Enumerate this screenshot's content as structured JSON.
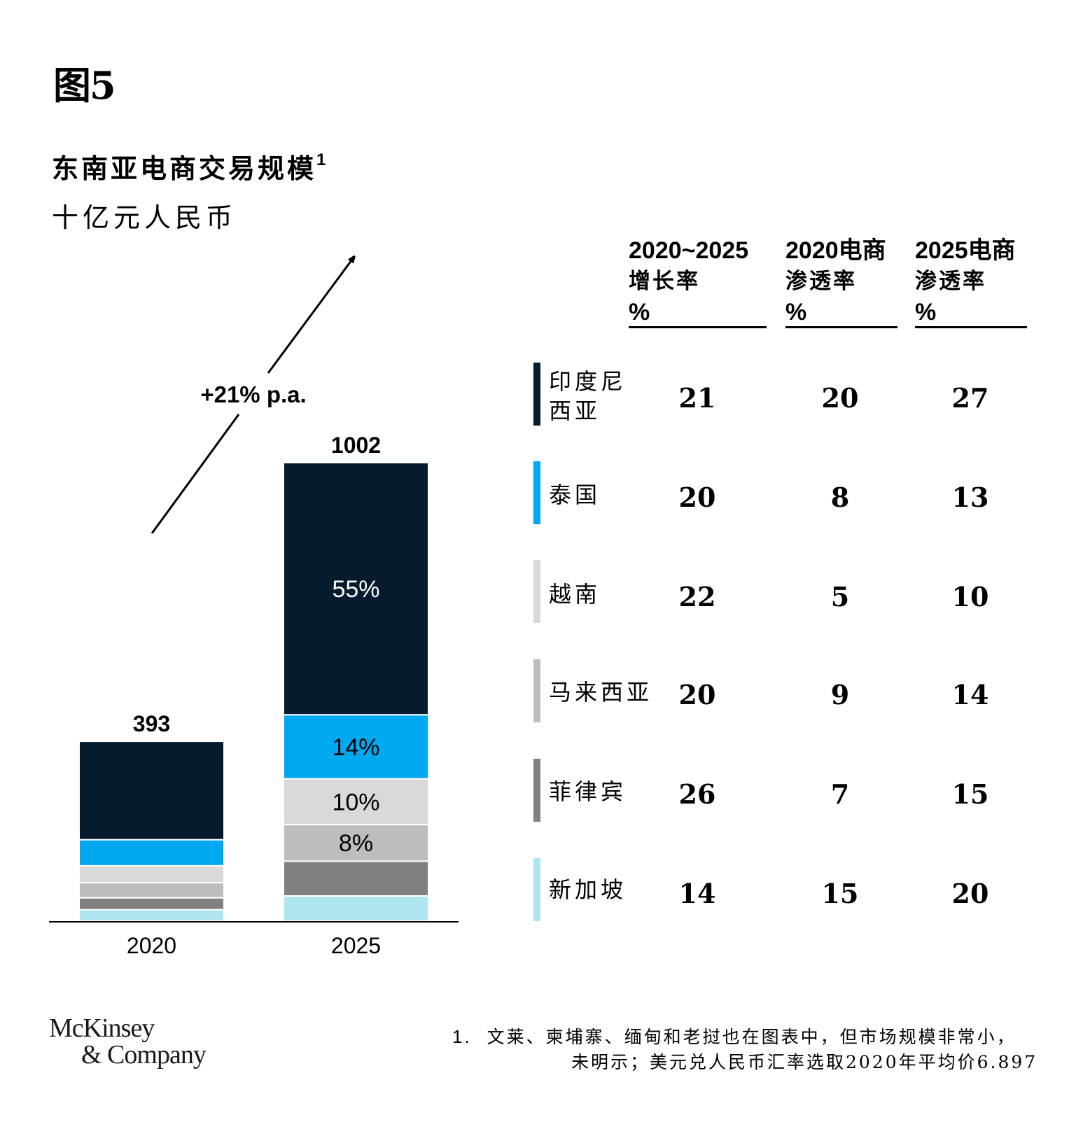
{
  "figure_label": "图5",
  "title": "东南亚电商交易规模",
  "title_footnote_mark": "1",
  "unit": "十亿元人民币",
  "colors": {
    "印度尼西亚": "#061B2E",
    "泰国": "#00A8F0",
    "越南": "#D9D9D9",
    "马来西亚": "#BDBDBD",
    "菲律宾": "#808080",
    "新加坡": "#AEE6EF"
  },
  "chart_data": {
    "type": "bar",
    "stacked": true,
    "categories": [
      "2020",
      "2025"
    ],
    "totals": [
      393,
      1002
    ],
    "series": [
      {
        "name": "印度尼西亚",
        "values": [
          215,
          551
        ],
        "labels": [
          "",
          "55%"
        ]
      },
      {
        "name": "泰国",
        "values": [
          57,
          140
        ],
        "labels": [
          "",
          "14%"
        ]
      },
      {
        "name": "越南",
        "values": [
          37,
          100
        ],
        "labels": [
          "",
          "10%"
        ]
      },
      {
        "name": "马来西亚",
        "values": [
          33,
          80
        ],
        "labels": [
          "",
          "8%"
        ]
      },
      {
        "name": "菲律宾",
        "values": [
          26,
          76
        ],
        "labels": [
          "",
          ""
        ]
      },
      {
        "name": "新加坡",
        "values": [
          25,
          55
        ],
        "labels": [
          "",
          ""
        ]
      }
    ],
    "growth_annotation": "+21% p.a.",
    "ylim": [
      0,
      1002
    ],
    "grid": false
  },
  "table": {
    "columns": [
      {
        "line1": "2020~2025",
        "line2": "增长率",
        "line3": "%"
      },
      {
        "line1": "2020电商",
        "line2": "渗透率",
        "line3": "%"
      },
      {
        "line1": "2025电商",
        "line2": "渗透率",
        "line3": "%"
      }
    ],
    "rows": [
      {
        "name_line1": "印度尼西亚",
        "name_line1_a": "印度尼",
        "name_line1_b": "西亚",
        "values": [
          "21",
          "20",
          "27"
        ],
        "color": "#061B2E"
      },
      {
        "name_line1": "泰国",
        "values": [
          "20",
          "8",
          "13"
        ],
        "color": "#00A8F0"
      },
      {
        "name_line1": "越南",
        "values": [
          "22",
          "5",
          "10"
        ],
        "color": "#D9D9D9"
      },
      {
        "name_line1": "马来西亚",
        "values": [
          "20",
          "9",
          "14"
        ],
        "color": "#BDBDBD"
      },
      {
        "name_line1": "菲律宾",
        "values": [
          "26",
          "7",
          "15"
        ],
        "color": "#808080"
      },
      {
        "name_line1": "新加坡",
        "values": [
          "14",
          "15",
          "20"
        ],
        "color": "#AEE6EF"
      }
    ]
  },
  "brand": {
    "line1": "McKinsey",
    "line2": "& Company"
  },
  "footnote": {
    "number": "1.",
    "line1": "文莱、柬埔寨、缅甸和老挝也在图表中，但市场规模非常小，",
    "line2": "未明示；美元兑人民币汇率选取2020年平均价6.897"
  }
}
